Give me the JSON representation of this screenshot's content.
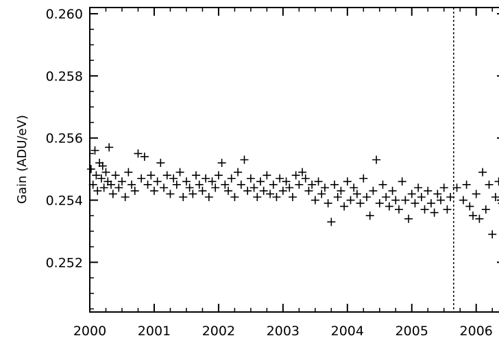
{
  "chart_data": {
    "type": "scatter",
    "title": "",
    "xlabel": "",
    "ylabel": "Gain (ADU/eV)",
    "xlim": [
      2000.0,
      2006.45
    ],
    "ylim": [
      0.2504,
      0.2602
    ],
    "x_ticks": [
      2000,
      2001,
      2002,
      2003,
      2004,
      2005,
      2006
    ],
    "x_tick_labels": [
      "2000",
      "2001",
      "2002",
      "2003",
      "2004",
      "2005",
      "2006"
    ],
    "y_ticks": [
      0.252,
      0.254,
      0.256,
      0.258,
      0.26
    ],
    "y_tick_labels": [
      "0.252",
      "0.254",
      "0.256",
      "0.258",
      "0.260"
    ],
    "marker": "plus",
    "grid": false,
    "reference_lines": [
      {
        "orientation": "vertical",
        "x": 2005.65,
        "style": "dashed"
      }
    ],
    "series": [
      {
        "x": [
          2000.02,
          2000.05,
          2000.08,
          2000.1,
          2000.12,
          2000.15,
          2000.18,
          2000.2,
          2000.22,
          2000.25,
          2000.28,
          2000.3,
          2000.33,
          2000.36,
          2000.4,
          2000.45,
          2000.5,
          2000.55,
          2000.6,
          2000.65,
          2000.7,
          2000.75,
          2000.8,
          2000.85,
          2000.9,
          2000.95,
          2001.0,
          2001.05,
          2001.1,
          2001.15,
          2001.2,
          2001.25,
          2001.3,
          2001.35,
          2001.4,
          2001.45,
          2001.5,
          2001.55,
          2001.6,
          2001.65,
          2001.7,
          2001.75,
          2001.8,
          2001.85,
          2001.9,
          2001.95,
          2002.0,
          2002.05,
          2002.1,
          2002.15,
          2002.2,
          2002.25,
          2002.3,
          2002.35,
          2002.4,
          2002.45,
          2002.5,
          2002.55,
          2002.6,
          2002.65,
          2002.7,
          2002.75,
          2002.8,
          2002.85,
          2002.9,
          2002.95,
          2003.0,
          2003.05,
          2003.1,
          2003.15,
          2003.2,
          2003.25,
          2003.3,
          2003.35,
          2003.4,
          2003.45,
          2003.5,
          2003.55,
          2003.6,
          2003.65,
          2003.7,
          2003.75,
          2003.8,
          2003.85,
          2003.9,
          2003.95,
          2004.0,
          2004.05,
          2004.1,
          2004.15,
          2004.2,
          2004.25,
          2004.3,
          2004.35,
          2004.4,
          2004.45,
          2004.5,
          2004.55,
          2004.6,
          2004.65,
          2004.7,
          2004.75,
          2004.8,
          2004.85,
          2004.9,
          2004.95,
          2005.0,
          2005.05,
          2005.1,
          2005.15,
          2005.2,
          2005.25,
          2005.3,
          2005.35,
          2005.4,
          2005.45,
          2005.5,
          2005.55,
          2005.6,
          2005.7,
          2005.8,
          2005.85,
          2005.9,
          2005.95,
          2006.0,
          2006.05,
          2006.1,
          2006.15,
          2006.2,
          2006.25,
          2006.3,
          2006.35,
          2006.4
        ],
        "y": [
          0.255,
          0.2545,
          0.2556,
          0.2548,
          0.2543,
          0.2552,
          0.2547,
          0.2551,
          0.2544,
          0.2549,
          0.2546,
          0.2557,
          0.2545,
          0.2542,
          0.2548,
          0.2544,
          0.2546,
          0.2541,
          0.2549,
          0.2545,
          0.2543,
          0.2555,
          0.2547,
          0.2554,
          0.2545,
          0.2548,
          0.2543,
          0.2546,
          0.2552,
          0.2544,
          0.2548,
          0.2542,
          0.2547,
          0.2545,
          0.2549,
          0.2541,
          0.2546,
          0.2544,
          0.2542,
          0.2548,
          0.2545,
          0.2543,
          0.2547,
          0.2541,
          0.2546,
          0.2544,
          0.2548,
          0.2552,
          0.2545,
          0.2543,
          0.2547,
          0.2541,
          0.2549,
          0.2545,
          0.2553,
          0.2543,
          0.2547,
          0.2544,
          0.2541,
          0.2546,
          0.2543,
          0.2548,
          0.2542,
          0.2545,
          0.2541,
          0.2547,
          0.2543,
          0.2546,
          0.2544,
          0.2541,
          0.2548,
          0.2545,
          0.2549,
          0.2547,
          0.2543,
          0.2545,
          0.254,
          0.2546,
          0.2542,
          0.2544,
          0.2539,
          0.2533,
          0.2545,
          0.2541,
          0.2543,
          0.2538,
          0.2546,
          0.254,
          0.2544,
          0.2542,
          0.2539,
          0.2547,
          0.2541,
          0.2535,
          0.2543,
          0.2553,
          0.2539,
          0.2545,
          0.2541,
          0.2538,
          0.2543,
          0.254,
          0.2537,
          0.2546,
          0.254,
          0.2534,
          0.2542,
          0.2539,
          0.2544,
          0.2541,
          0.2537,
          0.2543,
          0.2539,
          0.2536,
          0.2542,
          0.254,
          0.2544,
          0.2537,
          0.2541,
          0.2544,
          0.254,
          0.2545,
          0.2538,
          0.2535,
          0.2542,
          0.2534,
          0.2549,
          0.2537,
          0.2545,
          0.2529,
          0.2541,
          0.2546,
          0.2539
        ]
      }
    ]
  }
}
